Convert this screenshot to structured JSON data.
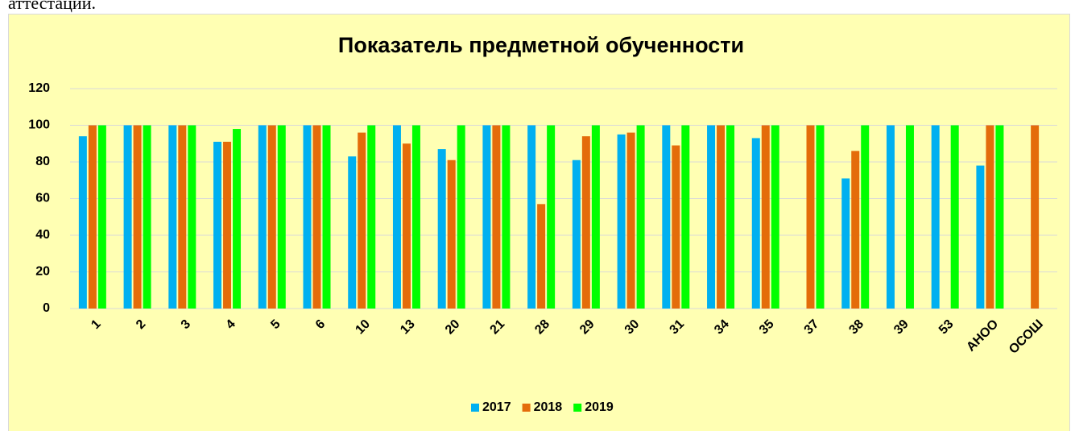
{
  "caption_fragment": "аттестации.",
  "chart_data": {
    "type": "bar",
    "title": "Показатель предметной обученности",
    "categories": [
      "1",
      "2",
      "3",
      "4",
      "5",
      "6",
      "10",
      "13",
      "20",
      "21",
      "28",
      "29",
      "30",
      "31",
      "34",
      "35",
      "37",
      "38",
      "39",
      "53",
      "АНОО",
      "ОСОШ"
    ],
    "series": [
      {
        "name": "2017",
        "color": "#00B0F0",
        "values": [
          94,
          100,
          100,
          91,
          100,
          100,
          83,
          100,
          87,
          100,
          100,
          81,
          95,
          100,
          100,
          93,
          null,
          71,
          100,
          100,
          78,
          null
        ]
      },
      {
        "name": "2018",
        "color": "#E46C0A",
        "values": [
          100,
          100,
          100,
          91,
          100,
          100,
          96,
          90,
          81,
          100,
          57,
          94,
          96,
          89,
          100,
          100,
          100,
          86,
          null,
          null,
          100,
          100
        ]
      },
      {
        "name": "2019",
        "color": "#00FF00",
        "values": [
          100,
          100,
          100,
          98,
          100,
          100,
          100,
          100,
          100,
          100,
          100,
          100,
          100,
          100,
          100,
          100,
          100,
          100,
          100,
          100,
          100,
          null
        ]
      }
    ],
    "ylim": [
      0,
      120
    ],
    "yticks": [
      0,
      20,
      40,
      60,
      80,
      100,
      120
    ],
    "grid": true,
    "legend": "bottom"
  }
}
